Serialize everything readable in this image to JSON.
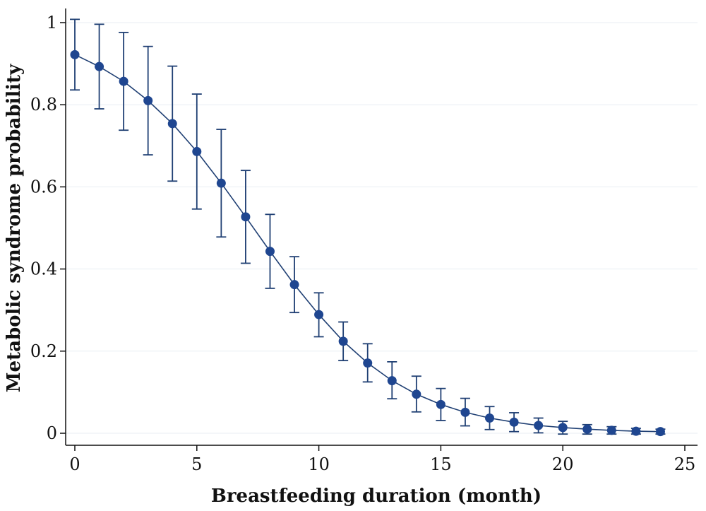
{
  "chart_data": {
    "type": "line",
    "title": "",
    "xlabel": "Breastfeeding duration (month)",
    "ylabel": "Metabolic syndrome probability",
    "xlim": [
      0,
      25
    ],
    "ylim": [
      0,
      1
    ],
    "x_ticks": [
      0,
      5,
      10,
      15,
      20,
      25
    ],
    "y_ticks": [
      0,
      0.2,
      0.4,
      0.6,
      0.8,
      1
    ],
    "x_tick_labels": [
      "0",
      "5",
      "10",
      "15",
      "20",
      "25"
    ],
    "y_tick_labels": [
      "0",
      "0.2",
      "0.4",
      "0.6",
      "0.8",
      "1"
    ],
    "grid": "horizontal",
    "legend": "none",
    "line_color": "#1f3f73",
    "marker_color": "#1f4690",
    "x": [
      0,
      1,
      2,
      3,
      4,
      5,
      6,
      7,
      8,
      9,
      10,
      11,
      12,
      13,
      14,
      15,
      16,
      17,
      18,
      19,
      20,
      21,
      22,
      23,
      24
    ],
    "series": [
      {
        "values": [
          0.922,
          0.893,
          0.857,
          0.81,
          0.754,
          0.686,
          0.609,
          0.527,
          0.443,
          0.362,
          0.289,
          0.224,
          0.171,
          0.128,
          0.095,
          0.07,
          0.051,
          0.037,
          0.027,
          0.019,
          0.014,
          0.01,
          0.007,
          0.005,
          0.004
        ],
        "lower": [
          0.836,
          0.79,
          0.738,
          0.678,
          0.614,
          0.546,
          0.478,
          0.414,
          0.353,
          0.294,
          0.235,
          0.177,
          0.125,
          0.084,
          0.052,
          0.031,
          0.018,
          0.009,
          0.004,
          0.001,
          -0.002,
          -0.002,
          -0.002,
          -0.002,
          -0.002
        ],
        "upper": [
          1.008,
          0.996,
          0.976,
          0.942,
          0.894,
          0.826,
          0.74,
          0.64,
          0.533,
          0.43,
          0.342,
          0.271,
          0.218,
          0.174,
          0.139,
          0.109,
          0.085,
          0.065,
          0.05,
          0.037,
          0.029,
          0.021,
          0.016,
          0.012,
          0.01
        ]
      }
    ]
  }
}
